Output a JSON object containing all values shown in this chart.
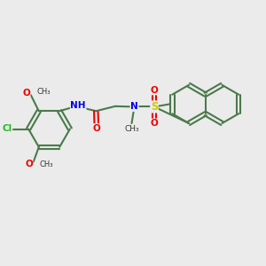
{
  "background_color": "#ebebeb",
  "bond_color": "#4a7a4a",
  "bond_width": 1.5,
  "atom_colors": {
    "N": "#0000ee",
    "O": "#ee0000",
    "Cl": "#22bb22",
    "S": "#cccc00",
    "H": "#888888",
    "C": "#333333"
  },
  "xlim": [
    0,
    10
  ],
  "ylim": [
    0,
    10
  ]
}
